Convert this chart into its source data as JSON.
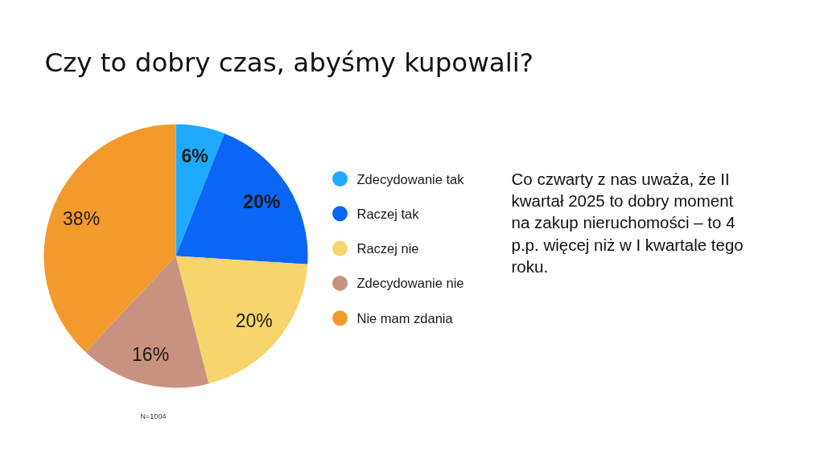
{
  "chart_data": {
    "type": "pie",
    "title": "Czy to dobry czas, abyśmy kupowali?",
    "categories": [
      "Zdecydowanie tak",
      "Raczej tak",
      "Raczej nie",
      "Zdecydowanie nie",
      "Nie mam zdania"
    ],
    "values": [
      6,
      20,
      20,
      16,
      38
    ],
    "colors": [
      "#1eaaff",
      "#0a66f5",
      "#f8d46c",
      "#c9917f",
      "#f39a2d"
    ],
    "value_labels": [
      "6%",
      "20%",
      "20%",
      "16%",
      "38%"
    ],
    "legend": "right",
    "annotations": [
      "Co czwarty z nas uważa, że  II kwartał 2025 to dobry moment na zakup nieruchomości – to 4 p.p. więcej niż w I kwartale tego roku.",
      "N=1004"
    ]
  }
}
